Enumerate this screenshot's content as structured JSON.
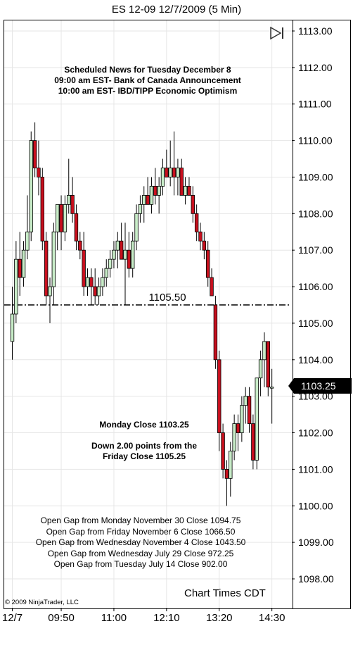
{
  "window": {
    "title": "ES 12-09  12/7/2009 (5 Min)"
  },
  "news": {
    "heading": "Scheduled News for Tuesday December 8",
    "line1": "09:00 am EST- Bank of Canada Announcement",
    "line2": "10:00 am EST- IBD/TIPP Economic Optimism"
  },
  "summary": {
    "monday_close": "Monday Close 1103.25",
    "down_line1": "Down 2.00 points from the",
    "down_line2": "Friday Close 1105.25"
  },
  "open_gaps": [
    "Open Gap from Monday November 30 Close 1094.75",
    "Open Gap from Friday November 6 Close 1066.50",
    "Open Gap from Wednesday November 4 Close 1043.50",
    "Open Gap from Wednesday July 29 Close 972.25",
    "Open Gap from Tuesday July 14 Close 902.00"
  ],
  "footer": {
    "chart_times": "Chart Times CDT",
    "copyright": "© 2009 NinjaTrader, LLC"
  },
  "last_price_label": "1103.25",
  "colors": {
    "up": "#c8ecc8",
    "down": "#c8101e",
    "outline": "#000000",
    "reference_line": "#000000"
  },
  "icons": {
    "play": "play-to-end-icon"
  },
  "chart_data": {
    "type": "candlestick",
    "title": "ES 12-09  12/7/2009 (5 Min)",
    "ylim": [
      1097.5,
      1113.25
    ],
    "y_ticks": [
      "1113.00",
      "1112.00",
      "1111.00",
      "1110.00",
      "1109.00",
      "1108.00",
      "1107.00",
      "1106.00",
      "1105.00",
      "1104.00",
      "1103.00",
      "1102.00",
      "1101.00",
      "1100.00",
      "1099.00",
      "1098.00"
    ],
    "x_ticks": [
      "12/7",
      "09:50",
      "11:00",
      "12:10",
      "13:20",
      "14:30"
    ],
    "x_tick_bar_index": [
      0,
      13,
      27,
      41,
      55,
      69
    ],
    "grid": true,
    "reference_line": {
      "value": 1105.5,
      "label": "1105.50"
    },
    "last_price": 1103.25,
    "bars": [
      {
        "o": 1104.5,
        "h": 1106.0,
        "l": 1104.0,
        "c": 1105.25
      },
      {
        "o": 1105.25,
        "h": 1107.25,
        "l": 1105.0,
        "c": 1106.75
      },
      {
        "o": 1106.75,
        "h": 1107.5,
        "l": 1105.75,
        "c": 1106.25
      },
      {
        "o": 1106.25,
        "h": 1107.25,
        "l": 1106.0,
        "c": 1107.0
      },
      {
        "o": 1107.0,
        "h": 1108.5,
        "l": 1106.75,
        "c": 1107.5
      },
      {
        "o": 1107.5,
        "h": 1110.25,
        "l": 1107.25,
        "c": 1110.0
      },
      {
        "o": 1110.0,
        "h": 1110.5,
        "l": 1109.0,
        "c": 1109.25
      },
      {
        "o": 1109.25,
        "h": 1110.0,
        "l": 1108.5,
        "c": 1109.0
      },
      {
        "o": 1109.0,
        "h": 1109.25,
        "l": 1107.0,
        "c": 1107.25
      },
      {
        "o": 1107.25,
        "h": 1107.5,
        "l": 1105.5,
        "c": 1105.75
      },
      {
        "o": 1105.75,
        "h": 1106.25,
        "l": 1105.0,
        "c": 1106.0
      },
      {
        "o": 1106.0,
        "h": 1107.75,
        "l": 1105.5,
        "c": 1107.5
      },
      {
        "o": 1107.5,
        "h": 1108.25,
        "l": 1107.0,
        "c": 1108.25
      },
      {
        "o": 1108.25,
        "h": 1108.5,
        "l": 1107.0,
        "c": 1107.5
      },
      {
        "o": 1107.5,
        "h": 1108.5,
        "l": 1107.25,
        "c": 1108.25
      },
      {
        "o": 1108.25,
        "h": 1109.5,
        "l": 1108.0,
        "c": 1108.5
      },
      {
        "o": 1108.5,
        "h": 1109.0,
        "l": 1107.75,
        "c": 1108.0
      },
      {
        "o": 1108.0,
        "h": 1108.25,
        "l": 1107.0,
        "c": 1107.25
      },
      {
        "o": 1107.25,
        "h": 1107.5,
        "l": 1106.75,
        "c": 1107.0
      },
      {
        "o": 1107.0,
        "h": 1107.5,
        "l": 1105.75,
        "c": 1106.0
      },
      {
        "o": 1106.0,
        "h": 1106.5,
        "l": 1105.75,
        "c": 1106.25
      },
      {
        "o": 1106.25,
        "h": 1106.5,
        "l": 1105.5,
        "c": 1106.0
      },
      {
        "o": 1106.0,
        "h": 1106.5,
        "l": 1105.5,
        "c": 1105.75
      },
      {
        "o": 1105.75,
        "h": 1106.25,
        "l": 1105.5,
        "c": 1106.0
      },
      {
        "o": 1106.0,
        "h": 1106.5,
        "l": 1105.75,
        "c": 1106.25
      },
      {
        "o": 1106.25,
        "h": 1106.75,
        "l": 1106.0,
        "c": 1106.5
      },
      {
        "o": 1106.5,
        "h": 1107.0,
        "l": 1106.25,
        "c": 1106.75
      },
      {
        "o": 1106.75,
        "h": 1107.25,
        "l": 1106.5,
        "c": 1107.0
      },
      {
        "o": 1107.0,
        "h": 1107.5,
        "l": 1106.5,
        "c": 1107.25
      },
      {
        "o": 1107.25,
        "h": 1107.75,
        "l": 1106.75,
        "c": 1106.75
      },
      {
        "o": 1106.75,
        "h": 1107.75,
        "l": 1105.5,
        "c": 1107.0
      },
      {
        "o": 1107.0,
        "h": 1107.5,
        "l": 1106.25,
        "c": 1106.5
      },
      {
        "o": 1106.5,
        "h": 1107.5,
        "l": 1106.25,
        "c": 1107.25
      },
      {
        "o": 1107.25,
        "h": 1108.25,
        "l": 1107.0,
        "c": 1108.0
      },
      {
        "o": 1108.0,
        "h": 1108.5,
        "l": 1107.75,
        "c": 1108.25
      },
      {
        "o": 1108.25,
        "h": 1108.75,
        "l": 1107.75,
        "c": 1108.5
      },
      {
        "o": 1108.5,
        "h": 1109.0,
        "l": 1108.25,
        "c": 1108.25
      },
      {
        "o": 1108.25,
        "h": 1109.0,
        "l": 1108.0,
        "c": 1108.75
      },
      {
        "o": 1108.75,
        "h": 1109.25,
        "l": 1108.25,
        "c": 1108.5
      },
      {
        "o": 1108.5,
        "h": 1109.0,
        "l": 1108.0,
        "c": 1108.75
      },
      {
        "o": 1108.75,
        "h": 1109.5,
        "l": 1108.5,
        "c": 1109.25
      },
      {
        "o": 1109.25,
        "h": 1109.75,
        "l": 1109.0,
        "c": 1109.0
      },
      {
        "o": 1109.0,
        "h": 1110.0,
        "l": 1108.75,
        "c": 1109.25
      },
      {
        "o": 1109.25,
        "h": 1110.25,
        "l": 1108.5,
        "c": 1109.0
      },
      {
        "o": 1109.0,
        "h": 1109.5,
        "l": 1108.5,
        "c": 1109.25
      },
      {
        "o": 1109.25,
        "h": 1109.5,
        "l": 1108.5,
        "c": 1108.5
      },
      {
        "o": 1108.5,
        "h": 1109.0,
        "l": 1108.25,
        "c": 1108.75
      },
      {
        "o": 1108.75,
        "h": 1109.0,
        "l": 1108.5,
        "c": 1108.5
      },
      {
        "o": 1108.5,
        "h": 1108.75,
        "l": 1107.75,
        "c": 1108.0
      },
      {
        "o": 1108.0,
        "h": 1108.25,
        "l": 1107.25,
        "c": 1107.5
      },
      {
        "o": 1107.5,
        "h": 1107.75,
        "l": 1107.0,
        "c": 1107.25
      },
      {
        "o": 1107.25,
        "h": 1107.5,
        "l": 1106.75,
        "c": 1107.0
      },
      {
        "o": 1107.0,
        "h": 1107.25,
        "l": 1106.0,
        "c": 1106.25
      },
      {
        "o": 1106.25,
        "h": 1106.5,
        "l": 1105.75,
        "c": 1105.75
      },
      {
        "o": 1105.5,
        "h": 1105.75,
        "l": 1103.75,
        "c": 1104.0
      },
      {
        "o": 1104.0,
        "h": 1104.25,
        "l": 1101.5,
        "c": 1102.0
      },
      {
        "o": 1102.0,
        "h": 1102.25,
        "l": 1100.75,
        "c": 1101.0
      },
      {
        "o": 1101.0,
        "h": 1101.25,
        "l": 1100.0,
        "c": 1100.75
      },
      {
        "o": 1100.75,
        "h": 1101.75,
        "l": 1100.25,
        "c": 1101.5
      },
      {
        "o": 1101.5,
        "h": 1102.5,
        "l": 1101.25,
        "c": 1102.25
      },
      {
        "o": 1102.25,
        "h": 1102.5,
        "l": 1101.5,
        "c": 1102.0
      },
      {
        "o": 1102.0,
        "h": 1103.0,
        "l": 1101.75,
        "c": 1102.75
      },
      {
        "o": 1102.75,
        "h": 1103.25,
        "l": 1102.25,
        "c": 1103.0
      },
      {
        "o": 1103.0,
        "h": 1103.25,
        "l": 1102.0,
        "c": 1102.25
      },
      {
        "o": 1102.25,
        "h": 1102.5,
        "l": 1101.0,
        "c": 1101.25
      },
      {
        "o": 1101.25,
        "h": 1103.5,
        "l": 1101.0,
        "c": 1103.5
      },
      {
        "o": 1103.5,
        "h": 1104.25,
        "l": 1103.0,
        "c": 1104.0
      },
      {
        "o": 1104.0,
        "h": 1104.75,
        "l": 1103.25,
        "c": 1104.5
      },
      {
        "o": 1104.5,
        "h": 1104.5,
        "l": 1103.0,
        "c": 1103.25
      },
      {
        "o": 1103.25,
        "h": 1103.75,
        "l": 1102.25,
        "c": 1103.25
      }
    ]
  }
}
